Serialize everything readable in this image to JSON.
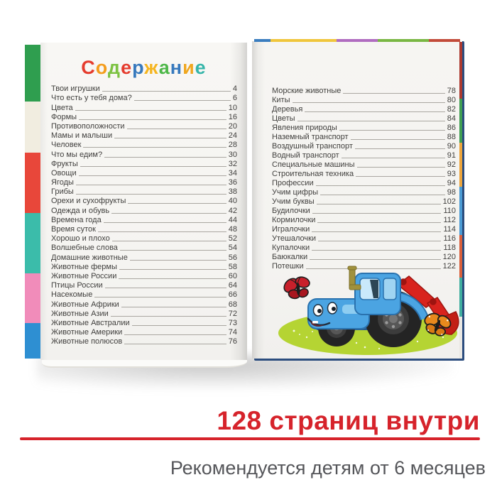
{
  "book": {
    "title_letters": [
      {
        "ch": "С",
        "color": "#e53c2e"
      },
      {
        "ch": "о",
        "color": "#f49d1d"
      },
      {
        "ch": "д",
        "color": "#7dc242"
      },
      {
        "ch": "е",
        "color": "#e53c2e"
      },
      {
        "ch": "р",
        "color": "#3779bd"
      },
      {
        "ch": "ж",
        "color": "#f5b51f"
      },
      {
        "ch": "а",
        "color": "#4db748"
      },
      {
        "ch": "н",
        "color": "#3779bd"
      },
      {
        "ch": "и",
        "color": "#f0a71f"
      },
      {
        "ch": "е",
        "color": "#35b5a9"
      }
    ],
    "toc_left": [
      {
        "label": "Твои игрушки",
        "page": "4"
      },
      {
        "label": "Что есть у тебя дома?",
        "page": "6"
      },
      {
        "label": "Цвета",
        "page": "10"
      },
      {
        "label": "Формы",
        "page": "16"
      },
      {
        "label": "Противоположности",
        "page": "20"
      },
      {
        "label": "Мамы и малыши",
        "page": "24"
      },
      {
        "label": "Человек",
        "page": "28"
      },
      {
        "label": "Что мы едим?",
        "page": "30"
      },
      {
        "label": "Фрукты",
        "page": "32"
      },
      {
        "label": "Овощи",
        "page": "34"
      },
      {
        "label": "Ягоды",
        "page": "36"
      },
      {
        "label": "Грибы",
        "page": "38"
      },
      {
        "label": "Орехи и сухофрукты",
        "page": "40"
      },
      {
        "label": "Одежда и обувь",
        "page": "42"
      },
      {
        "label": "Времена года",
        "page": "44"
      },
      {
        "label": "Время суток",
        "page": "48"
      },
      {
        "label": "Хорошо и плохо",
        "page": "52"
      },
      {
        "label": "Волшебные слова",
        "page": "54"
      },
      {
        "label": "Домашние животные",
        "page": "56"
      },
      {
        "label": "Животные фермы",
        "page": "58"
      },
      {
        "label": "Животные России",
        "page": "60"
      },
      {
        "label": "Птицы России",
        "page": "64"
      },
      {
        "label": "Насекомые",
        "page": "66"
      },
      {
        "label": "Животные Африки",
        "page": "68"
      },
      {
        "label": "Животные Азии",
        "page": "72"
      },
      {
        "label": "Животные Австралии",
        "page": "73"
      },
      {
        "label": "Животные Америки",
        "page": "74"
      },
      {
        "label": "Животные полюсов",
        "page": "76"
      }
    ],
    "toc_right": [
      {
        "label": "Морские животные",
        "page": "78"
      },
      {
        "label": "Киты",
        "page": "80"
      },
      {
        "label": "Деревья",
        "page": "82"
      },
      {
        "label": "Цветы",
        "page": "84"
      },
      {
        "label": "Явления природы",
        "page": "86"
      },
      {
        "label": "Наземный транспорт",
        "page": "88"
      },
      {
        "label": "Воздушный транспорт",
        "page": "90"
      },
      {
        "label": "Водный транспорт",
        "page": "91"
      },
      {
        "label": "Специальные машины",
        "page": "92"
      },
      {
        "label": "Строительная техника",
        "page": "93"
      },
      {
        "label": "Профессии",
        "page": "94"
      },
      {
        "label": "Учим цифры",
        "page": "98"
      },
      {
        "label": "Учим буквы",
        "page": "102"
      },
      {
        "label": "Будилочки",
        "page": "110"
      },
      {
        "label": "Кормилочки",
        "page": "112"
      },
      {
        "label": "Игралочки",
        "page": "114"
      },
      {
        "label": "Утешалочки",
        "page": "116"
      },
      {
        "label": "Купалочки",
        "page": "118"
      },
      {
        "label": "Баюкалки",
        "page": "120"
      },
      {
        "label": "Потешки",
        "page": "122"
      }
    ],
    "left_edge_tabs": [
      {
        "color": "#2f9e4f"
      },
      {
        "color": "#f1ede0"
      },
      {
        "color": "#e8473a"
      },
      {
        "color": "#3bbcaa"
      },
      {
        "color": "#f18cba"
      },
      {
        "color": "#2e8fd2"
      }
    ],
    "top_edge_strip": [
      {
        "color": "#3a7dbf"
      },
      {
        "color": "#f0c63c"
      },
      {
        "color": "#b06cc0"
      },
      {
        "color": "#79b743"
      },
      {
        "color": "#c24b3a"
      }
    ],
    "right_edge_strip": [
      {
        "color": "#ac3a30"
      },
      {
        "color": "#3f9e52"
      },
      {
        "color": "#eda53c"
      },
      {
        "color": "#4a9bd4"
      },
      {
        "color": "#d95f3b"
      },
      {
        "color": "#3fae9f"
      },
      {
        "color": "#eae8e3"
      }
    ]
  },
  "illustration": {
    "name": "blue-tractor-with-excavator-on-meadow",
    "colors": {
      "meadow_green": "#b5d433",
      "tractor_blue": "#4ba4e2",
      "tractor_blue_light": "#8ecdf1",
      "excavator_red": "#d8231d",
      "bucket_red": "#c21f16",
      "wheel_black": "#242424",
      "butterfly_red": "#c8202b",
      "butterfly_red_dark": "#a8161f",
      "butterfly_orange": "#e8891d",
      "butterfly_orange_dark": "#d97a15"
    }
  },
  "footer": {
    "pages_text": "128 страниц внутри",
    "recommendation_text": "Рекомендуется детям от 6 месяцев",
    "accent_color": "#d6232b",
    "text_color": "#55565a"
  }
}
